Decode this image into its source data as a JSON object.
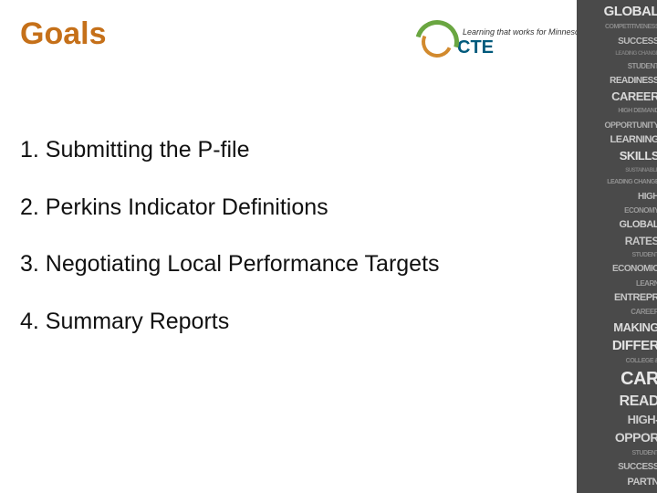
{
  "title": "Goals",
  "logo": {
    "tagline": "Learning that works for Minnesota",
    "text": "CTE",
    "arc_outer_color": "#6aa641",
    "arc_inner_color": "#d28a2e",
    "text_color": "#005a7c"
  },
  "list_items": [
    "1. Submitting the P-file",
    "2. Perkins Indicator Definitions",
    "3. Negotiating Local Performance Targets",
    "4. Summary Reports"
  ],
  "side_strip": {
    "background": "#4a4a4a",
    "words": [
      {
        "text": "GLOBAL",
        "size": 15,
        "color": "#e4e4e4"
      },
      {
        "text": "COMPETITIVENESS",
        "size": 7,
        "color": "#8a8a8a"
      },
      {
        "text": "SUCCESS",
        "size": 10,
        "color": "#bcbcbc"
      },
      {
        "text": "LEADING CHANGE",
        "size": 6,
        "color": "#7d7d7d"
      },
      {
        "text": "STUDENT",
        "size": 8,
        "color": "#9e9e9e"
      },
      {
        "text": "READINESS",
        "size": 10,
        "color": "#c8c8c8"
      },
      {
        "text": "CAREER",
        "size": 13,
        "color": "#d6d6d6"
      },
      {
        "text": "HIGH DEMAND",
        "size": 7,
        "color": "#888888"
      },
      {
        "text": "OPPORTUNITY",
        "size": 9,
        "color": "#b0b0b0"
      },
      {
        "text": "LEARNING",
        "size": 11,
        "color": "#cccccc"
      },
      {
        "text": "SKILLS",
        "size": 13,
        "color": "#e0e0e0"
      },
      {
        "text": "SUSTAINABLE",
        "size": 6,
        "color": "#808080"
      },
      {
        "text": "LEADING CHANGE",
        "size": 7,
        "color": "#909090"
      },
      {
        "text": "HIGH",
        "size": 10,
        "color": "#bcbcbc"
      },
      {
        "text": "ECONOMY",
        "size": 8,
        "color": "#9a9a9a"
      },
      {
        "text": "GLOBAL",
        "size": 11,
        "color": "#d0d0d0"
      },
      {
        "text": "RATES",
        "size": 12,
        "color": "#c6c6c6"
      },
      {
        "text": "STUDENT",
        "size": 7,
        "color": "#888888"
      },
      {
        "text": "ECONOMIC",
        "size": 10,
        "color": "#bcbcbc"
      },
      {
        "text": "LEARN",
        "size": 8,
        "color": "#9a9a9a"
      },
      {
        "text": "ENTREPR",
        "size": 11,
        "color": "#c8c8c8"
      },
      {
        "text": "CAREER",
        "size": 8,
        "color": "#909090"
      },
      {
        "text": "MAKING",
        "size": 13,
        "color": "#dcdcdc"
      },
      {
        "text": "DIFFER",
        "size": 15,
        "color": "#e2e2e2"
      },
      {
        "text": "COLLEGE &",
        "size": 7,
        "color": "#8a8a8a"
      },
      {
        "text": "CAR",
        "size": 20,
        "color": "#e8e8e8"
      },
      {
        "text": "READ",
        "size": 16,
        "color": "#dedede"
      },
      {
        "text": "HIGH-",
        "size": 13,
        "color": "#cccccc"
      },
      {
        "text": "OPPOR",
        "size": 14,
        "color": "#d4d4d4"
      },
      {
        "text": "STUDENT",
        "size": 7,
        "color": "#888888"
      },
      {
        "text": "SUCCESS",
        "size": 10,
        "color": "#bcbcbc"
      },
      {
        "text": "PARTN",
        "size": 11,
        "color": "#c4c4c4"
      }
    ]
  },
  "colors": {
    "title": "#c57019",
    "body_text": "#111111",
    "background": "#ffffff"
  },
  "fonts": {
    "title_size": 34,
    "body_size": 25
  }
}
